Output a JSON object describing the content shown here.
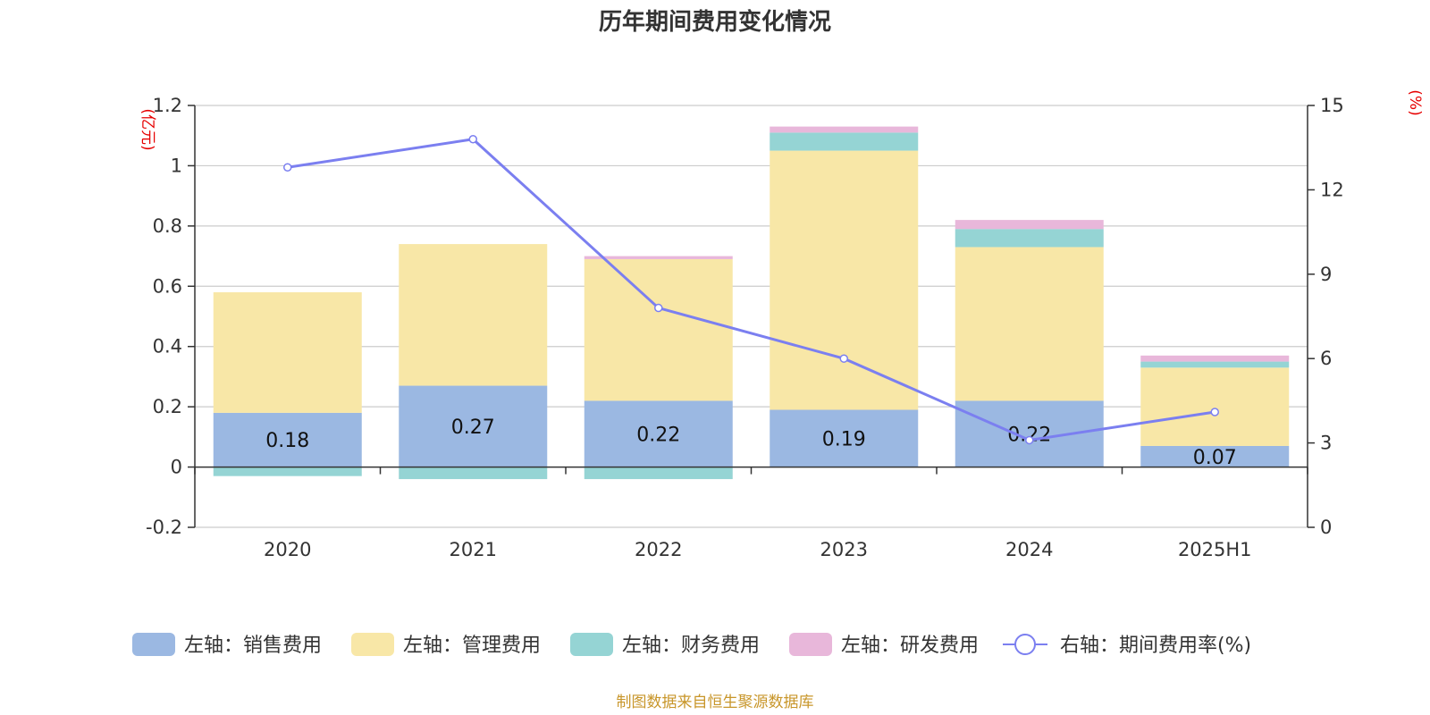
{
  "chart_data": {
    "type": "bar",
    "title": "历年期间费用变化情况",
    "categories": [
      "2020",
      "2021",
      "2022",
      "2023",
      "2024",
      "2025H1"
    ],
    "left_axis": {
      "unit": "(亿元)",
      "min": -0.2,
      "max": 1.2,
      "ticks": [
        "1.2",
        "1",
        "0.8",
        "0.6",
        "0.4",
        "0.2",
        "0",
        "-0.2"
      ]
    },
    "right_axis": {
      "unit": "(%)",
      "min": 0,
      "max": 15,
      "ticks": [
        "15",
        "12",
        "9",
        "6",
        "3",
        "0"
      ]
    },
    "series": [
      {
        "name": "左轴：销售费用",
        "type": "bar",
        "color": "#9bb8e2",
        "values": [
          0.18,
          0.27,
          0.22,
          0.19,
          0.22,
          0.07
        ],
        "labels": [
          "0.18",
          "0.27",
          "0.22",
          "0.19",
          "0.22",
          "0.07"
        ]
      },
      {
        "name": "左轴：管理费用",
        "type": "bar",
        "color": "#f8e7a7",
        "values": [
          0.4,
          0.47,
          0.47,
          0.86,
          0.51,
          0.26
        ]
      },
      {
        "name": "左轴：财务费用",
        "type": "bar",
        "color": "#95d4d4",
        "values": [
          -0.03,
          -0.04,
          -0.04,
          0.06,
          0.06,
          0.02
        ]
      },
      {
        "name": "左轴：研发费用",
        "type": "bar",
        "color": "#e8b7da",
        "values": [
          0.0,
          0.0,
          0.01,
          0.02,
          0.03,
          0.02
        ]
      },
      {
        "name": "右轴：期间费用率(%)",
        "type": "line",
        "color": "#7b7ff0",
        "values": [
          12.8,
          13.8,
          7.8,
          6.0,
          3.1,
          4.1
        ]
      }
    ],
    "grid": true,
    "legend_position": "bottom"
  },
  "source_note": "制图数据来自恒生聚源数据库"
}
